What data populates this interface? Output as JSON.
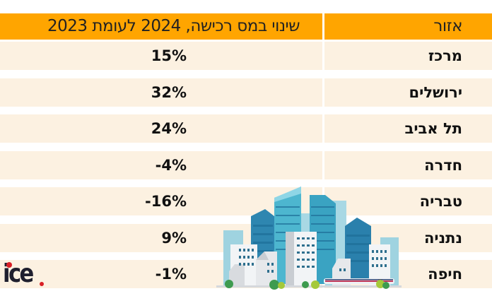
{
  "chart_data": {
    "type": "table",
    "title": "",
    "columns": [
      "אזור",
      "שינוי במס רכישה, 2024 לעומת 2023"
    ],
    "rows": [
      {
        "region": "מרכז",
        "change": "15%",
        "value": 15
      },
      {
        "region": "ירושלים",
        "change": "32%",
        "value": 32
      },
      {
        "region": "תל אביב",
        "change": "24%",
        "value": 24
      },
      {
        "region": "חדרה",
        "change": "-4%",
        "value": -4
      },
      {
        "region": "טבריה",
        "change": "-16%",
        "value": -16
      },
      {
        "region": "נתניה",
        "change": "9%",
        "value": 9
      },
      {
        "region": "חיפה",
        "change": "-1%",
        "value": -1
      }
    ]
  },
  "header": {
    "region_label": "אזור",
    "change_label": "שינוי במס רכישה, 2024 לעומת 2023"
  },
  "logo": {
    "text": "ice"
  },
  "illustration": {
    "icon": "city-skyline-icon"
  },
  "colors": {
    "header_bg": "#FFA500",
    "row_bg": "#FCF1E1",
    "logo_accent": "#D91F26"
  }
}
